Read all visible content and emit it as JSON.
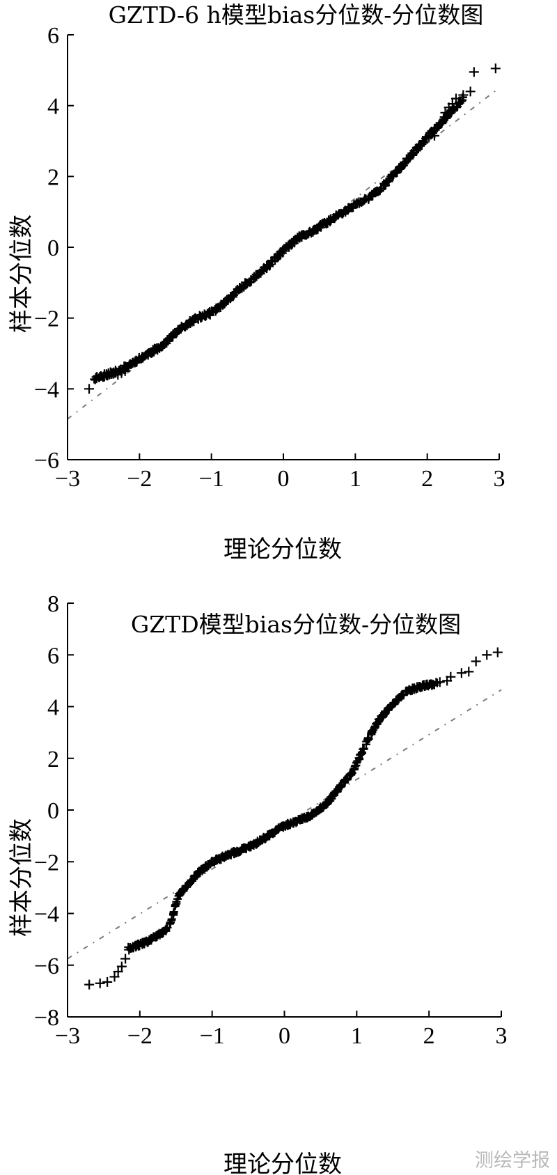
{
  "chart_data": [
    {
      "type": "scatter",
      "title": "GZTD-6 h模型bias分位数-分位数图",
      "xlabel": "理论分位数",
      "ylabel": "样本分位数",
      "xlim": [
        -3,
        3
      ],
      "ylim": [
        -6,
        6
      ],
      "xticks": [
        -3,
        -2,
        -1,
        0,
        1,
        2,
        3
      ],
      "yticks": [
        -6,
        -4,
        -2,
        0,
        2,
        4,
        6
      ],
      "marker": "+",
      "grid": false,
      "reference_line": {
        "style": "dash-dot",
        "x": [
          -3,
          3
        ],
        "y": [
          -4.85,
          4.5
        ]
      },
      "curve": {
        "x": [
          -2.62,
          -2.3,
          -2.0,
          -1.7,
          -1.4,
          -1.2,
          -1.0,
          -0.8,
          -0.6,
          -0.4,
          -0.2,
          0.0,
          0.2,
          0.4,
          0.6,
          0.8,
          1.0,
          1.2,
          1.4,
          1.6,
          1.8,
          2.0,
          2.2,
          2.5
        ],
        "y": [
          -3.7,
          -3.5,
          -3.15,
          -2.8,
          -2.25,
          -2.0,
          -1.85,
          -1.55,
          -1.15,
          -0.85,
          -0.5,
          -0.1,
          0.25,
          0.45,
          0.7,
          0.95,
          1.2,
          1.4,
          1.75,
          2.2,
          2.65,
          3.1,
          3.55,
          4.2
        ]
      },
      "tail_points": {
        "x": [
          -2.7,
          -2.5,
          -2.45,
          -2.3,
          -2.25,
          -2.2,
          -2.15,
          2.1,
          2.2,
          2.25,
          2.3,
          2.35,
          2.4,
          2.5,
          2.6,
          2.65,
          2.95
        ],
        "y": [
          -4.0,
          -3.65,
          -3.62,
          -3.6,
          -3.55,
          -3.5,
          -3.38,
          3.15,
          3.5,
          3.8,
          3.95,
          4.05,
          4.2,
          4.3,
          4.4,
          4.95,
          5.05
        ]
      }
    },
    {
      "type": "scatter",
      "title": "GZTD模型bias分位数-分位数图",
      "xlabel": "理论分位数",
      "ylabel": "样本分位数",
      "xlim": [
        -3,
        3
      ],
      "ylim": [
        -8,
        8
      ],
      "xticks": [
        -3,
        -2,
        -1,
        0,
        1,
        2,
        3
      ],
      "yticks": [
        -8,
        -6,
        -4,
        -2,
        0,
        2,
        4,
        6,
        8
      ],
      "marker": "+",
      "grid": false,
      "reference_line": {
        "style": "dash-dot",
        "x": [
          -3,
          3
        ],
        "y": [
          -5.75,
          4.65
        ]
      },
      "curve": {
        "x": [
          -2.15,
          -1.9,
          -1.7,
          -1.6,
          -1.55,
          -1.5,
          -1.45,
          -1.35,
          -1.2,
          -1.0,
          -0.8,
          -0.6,
          -0.4,
          -0.2,
          0.0,
          0.2,
          0.4,
          0.6,
          0.8,
          0.95,
          1.05,
          1.15,
          1.3,
          1.5,
          1.7,
          1.9,
          2.1
        ],
        "y": [
          -5.35,
          -5.1,
          -4.75,
          -4.55,
          -4.2,
          -3.6,
          -3.25,
          -2.95,
          -2.45,
          -2.0,
          -1.75,
          -1.55,
          -1.3,
          -0.95,
          -0.6,
          -0.4,
          -0.15,
          0.3,
          1.0,
          1.5,
          2.1,
          2.7,
          3.45,
          4.1,
          4.6,
          4.8,
          4.9
        ]
      },
      "tail_points": {
        "x": [
          -2.7,
          -2.55,
          -2.45,
          -2.35,
          -2.3,
          -2.25,
          -2.2,
          -2.15,
          2.15,
          2.25,
          2.3,
          2.45,
          2.55,
          2.65,
          2.8,
          2.95
        ],
        "y": [
          -6.75,
          -6.7,
          -6.65,
          -6.45,
          -6.25,
          -6.05,
          -5.75,
          -5.4,
          4.95,
          5.0,
          5.15,
          5.3,
          5.35,
          5.75,
          6.0,
          6.1
        ]
      }
    }
  ],
  "watermark": "测绘学报",
  "colors": {
    "marker": "#000000",
    "reference_line": "#7a7a7a",
    "axis": "#000000",
    "watermark": "#b9b9b9"
  }
}
